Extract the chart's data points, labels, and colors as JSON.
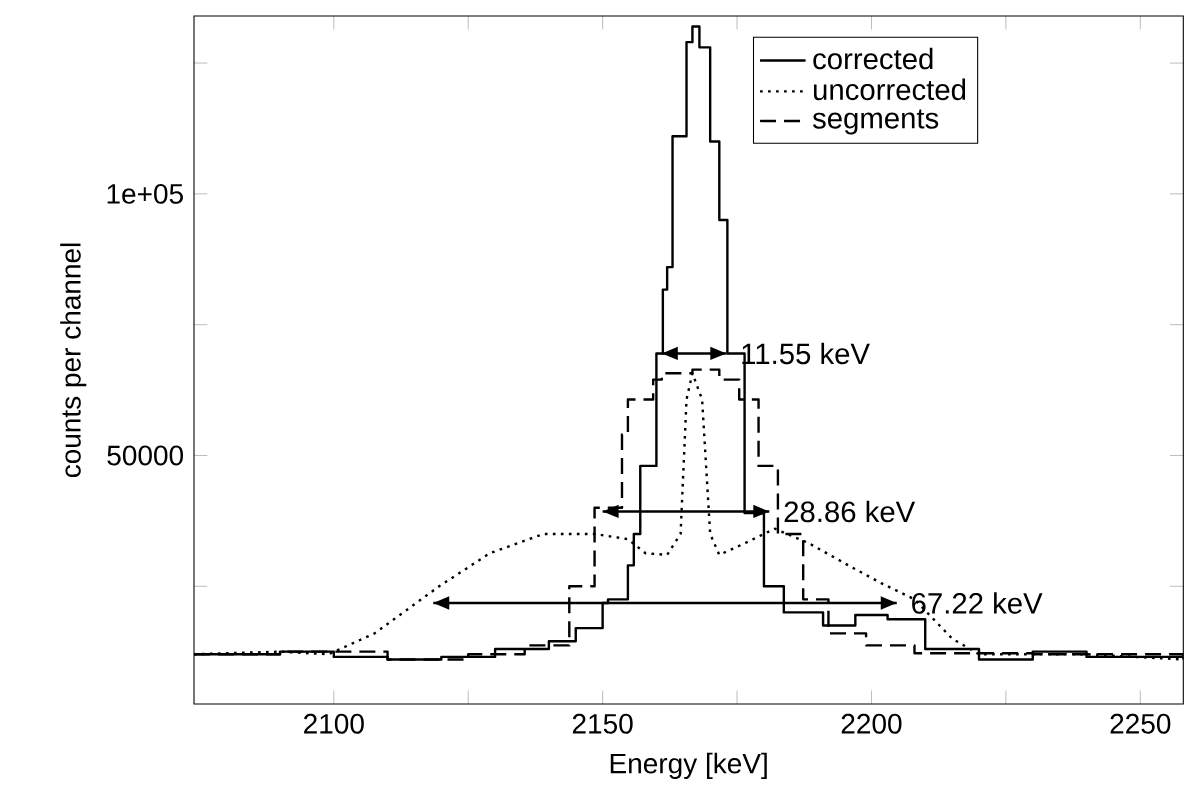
{
  "chart_data": {
    "type": "step",
    "xlabel": "Energy [keV]",
    "ylabel": "counts per channel",
    "xlim": [
      2074,
      2258
    ],
    "xticks": [
      2100,
      {
        "value": 2125,
        "label": null
      },
      2150,
      {
        "value": 2175,
        "label": null
      },
      2200,
      {
        "value": 2225,
        "label": null
      },
      2250
    ],
    "ylim": [
      2500,
      134000
    ],
    "yticks": [
      {
        "value": 25000,
        "label": null
      },
      50000,
      {
        "value": 75000,
        "label": null
      },
      {
        "value": 100000,
        "label": "1e+05"
      },
      {
        "value": 125000,
        "label": null
      }
    ],
    "grid": false,
    "legend": "top right",
    "series": [
      {
        "name": "corrected",
        "line_style": "solid",
        "color": "#000000",
        "x": [
          2074,
          2090,
          2100,
          2110,
          2120,
          2130,
          2140,
          2145,
          2150,
          2151,
          2154.7,
          2155.8,
          2157,
          2158.3,
          2160,
          2160.9,
          2161.2,
          2162,
          2163,
          2165.6,
          2166.7,
          2168,
          2170,
          2171.7,
          2173.2,
          2176.4,
          2180,
          2183.7,
          2191,
          2197,
          2203,
          2210,
          2220,
          2230,
          2240,
          2258
        ],
        "values": [
          12000,
          12500,
          11500,
          11000,
          11500,
          13000,
          14500,
          17000,
          21800,
          22500,
          29000,
          35000,
          48000,
          48000,
          69500,
          69500,
          81700,
          86000,
          111000,
          129000,
          132000,
          128000,
          110000,
          95000,
          69500,
          39000,
          25000,
          20000,
          17500,
          19500,
          18700,
          13000,
          11000,
          12500,
          11500,
          11000
        ]
      },
      {
        "name": "uncorrected",
        "type": "line",
        "line_style": "dotted",
        "color": "#000000",
        "x": [
          2074,
          2090,
          2099,
          2107.6,
          2119.6,
          2129,
          2139,
          2148.5,
          2154.7,
          2158,
          2162,
          2164.5,
          2165.6,
          2166.7,
          2168.5,
          2170,
          2171.7,
          2176.4,
          2182,
          2188.4,
          2195.7,
          2201.8,
          2208,
          2215,
          2220,
          2240,
          2258
        ],
        "values": [
          12000,
          12500,
          12000,
          16000,
          25000,
          31300,
          35000,
          35000,
          34000,
          31300,
          31000,
          35000,
          60700,
          65700,
          60700,
          35000,
          31000,
          33200,
          36000,
          33200,
          29000,
          25600,
          22500,
          15000,
          12000,
          12000,
          11000
        ]
      },
      {
        "name": "segments",
        "line_style": "dashed",
        "color": "#000000",
        "x": [
          2074,
          2090,
          2110,
          2125,
          2135.5,
          2143.8,
          2148.5,
          2153.6,
          2154.7,
          2159.4,
          2161,
          2166.7,
          2171.7,
          2175.4,
          2179,
          2182.6,
          2187.3,
          2192,
          2199,
          2208,
          2230,
          2258
        ],
        "values": [
          12000,
          12500,
          11000,
          12000,
          13700,
          25000,
          40000,
          54000,
          60700,
          64500,
          65700,
          66400,
          64500,
          60700,
          48000,
          35000,
          22500,
          16000,
          13700,
          12200,
          12000,
          11000
        ]
      },
      {
        "type": "line",
        "line_style": "solid",
        "color": "#000000",
        "x": [
          2161,
          2173
        ],
        "values": [
          69500,
          69500
        ]
      },
      {
        "type": "line",
        "line_style": "solid",
        "color": "#000000",
        "x": [
          2150,
          2181
        ],
        "values": [
          39300,
          39300
        ]
      },
      {
        "type": "line",
        "line_style": "solid",
        "color": "#000000",
        "x": [
          2118.5,
          2204.7
        ],
        "values": [
          21800,
          21800
        ]
      }
    ],
    "annotations": [
      "11.55 keV",
      "28.86 keV",
      "67.22 keV"
    ]
  }
}
